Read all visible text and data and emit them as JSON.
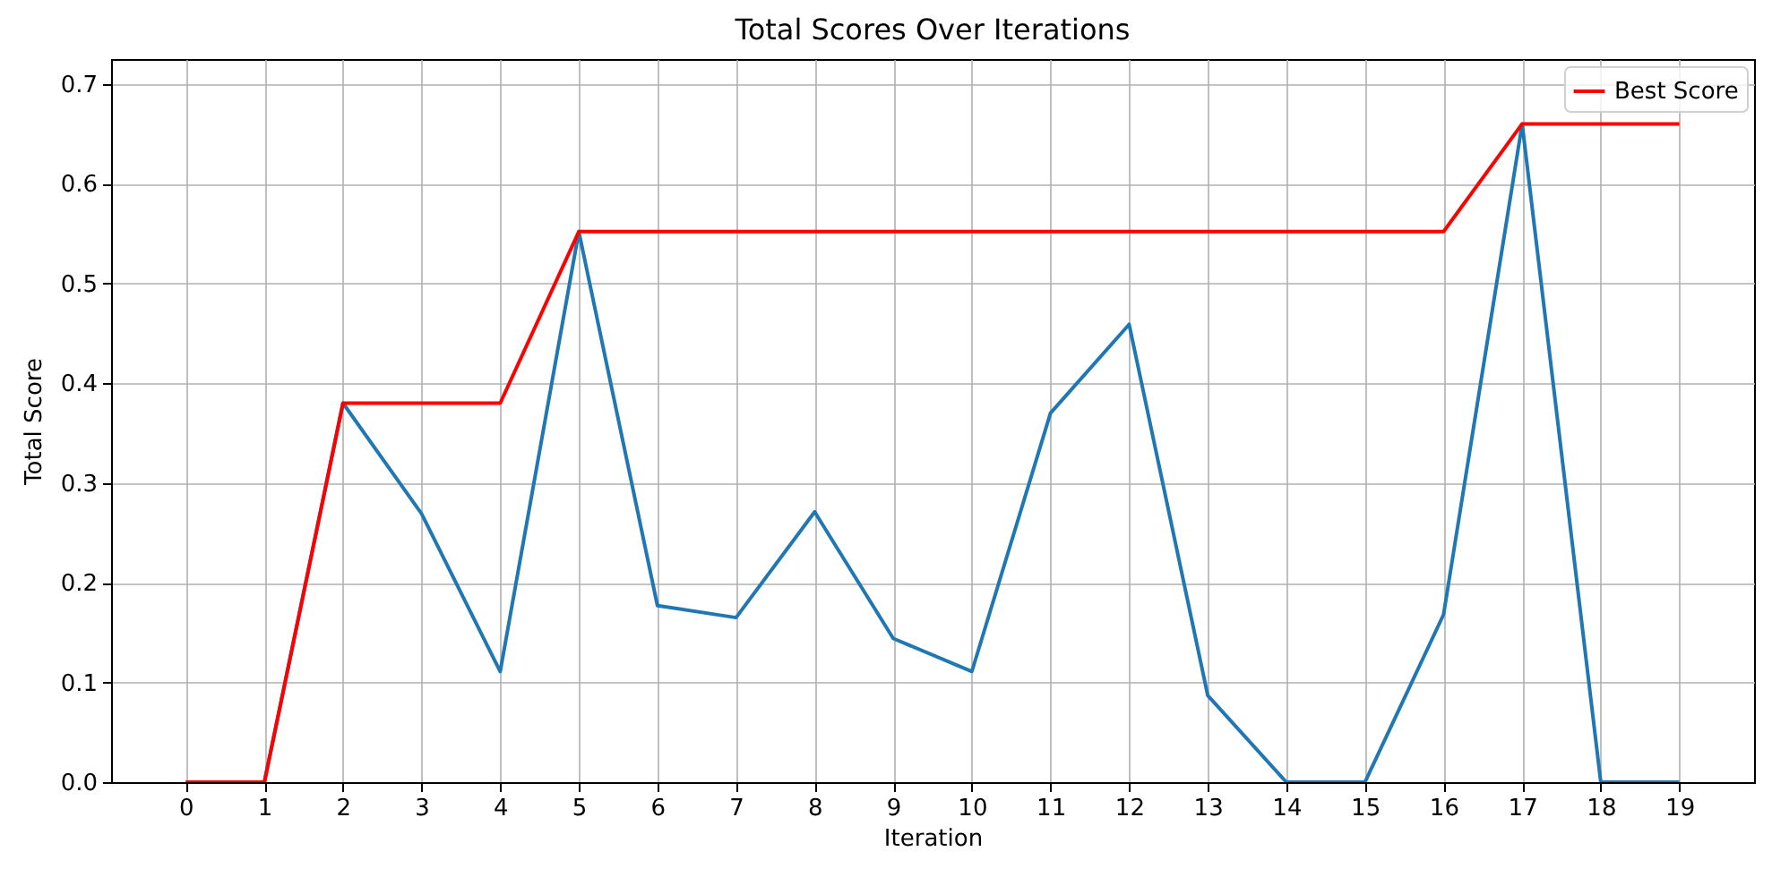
{
  "chart_data": {
    "type": "line",
    "title": "Total Scores Over Iterations",
    "xlabel": "Iteration",
    "ylabel": "Total Score",
    "x": [
      0,
      1,
      2,
      3,
      4,
      5,
      6,
      7,
      8,
      9,
      10,
      11,
      12,
      13,
      14,
      15,
      16,
      17,
      18,
      19
    ],
    "series": [
      {
        "color": "#1f77b4",
        "values": [
          0,
          0,
          0.38,
          0.269,
          0.111,
          0.552,
          0.177,
          0.165,
          0.271,
          0.144,
          0.111,
          0.37,
          0.459,
          0.087,
          0,
          0,
          0.168,
          0.66,
          0,
          0
        ]
      },
      {
        "name": "Best Score",
        "color": "#ff0000",
        "values": [
          0,
          0,
          0.38,
          0.38,
          0.38,
          0.552,
          0.552,
          0.552,
          0.552,
          0.552,
          0.552,
          0.552,
          0.552,
          0.552,
          0.552,
          0.552,
          0.552,
          0.66,
          0.66,
          0.66
        ]
      }
    ],
    "xlim": [
      -0.95,
      19.95
    ],
    "xticks": [
      0,
      1,
      2,
      3,
      4,
      5,
      6,
      7,
      8,
      9,
      10,
      11,
      12,
      13,
      14,
      15,
      16,
      17,
      18,
      19
    ],
    "ylim": [
      0,
      0.725
    ],
    "yticks": [
      {
        "value": 0,
        "label": "0.0"
      },
      0.1,
      0.2,
      0.3,
      0.4,
      0.5,
      0.6,
      0.7
    ],
    "grid": true,
    "legend": "top right"
  }
}
